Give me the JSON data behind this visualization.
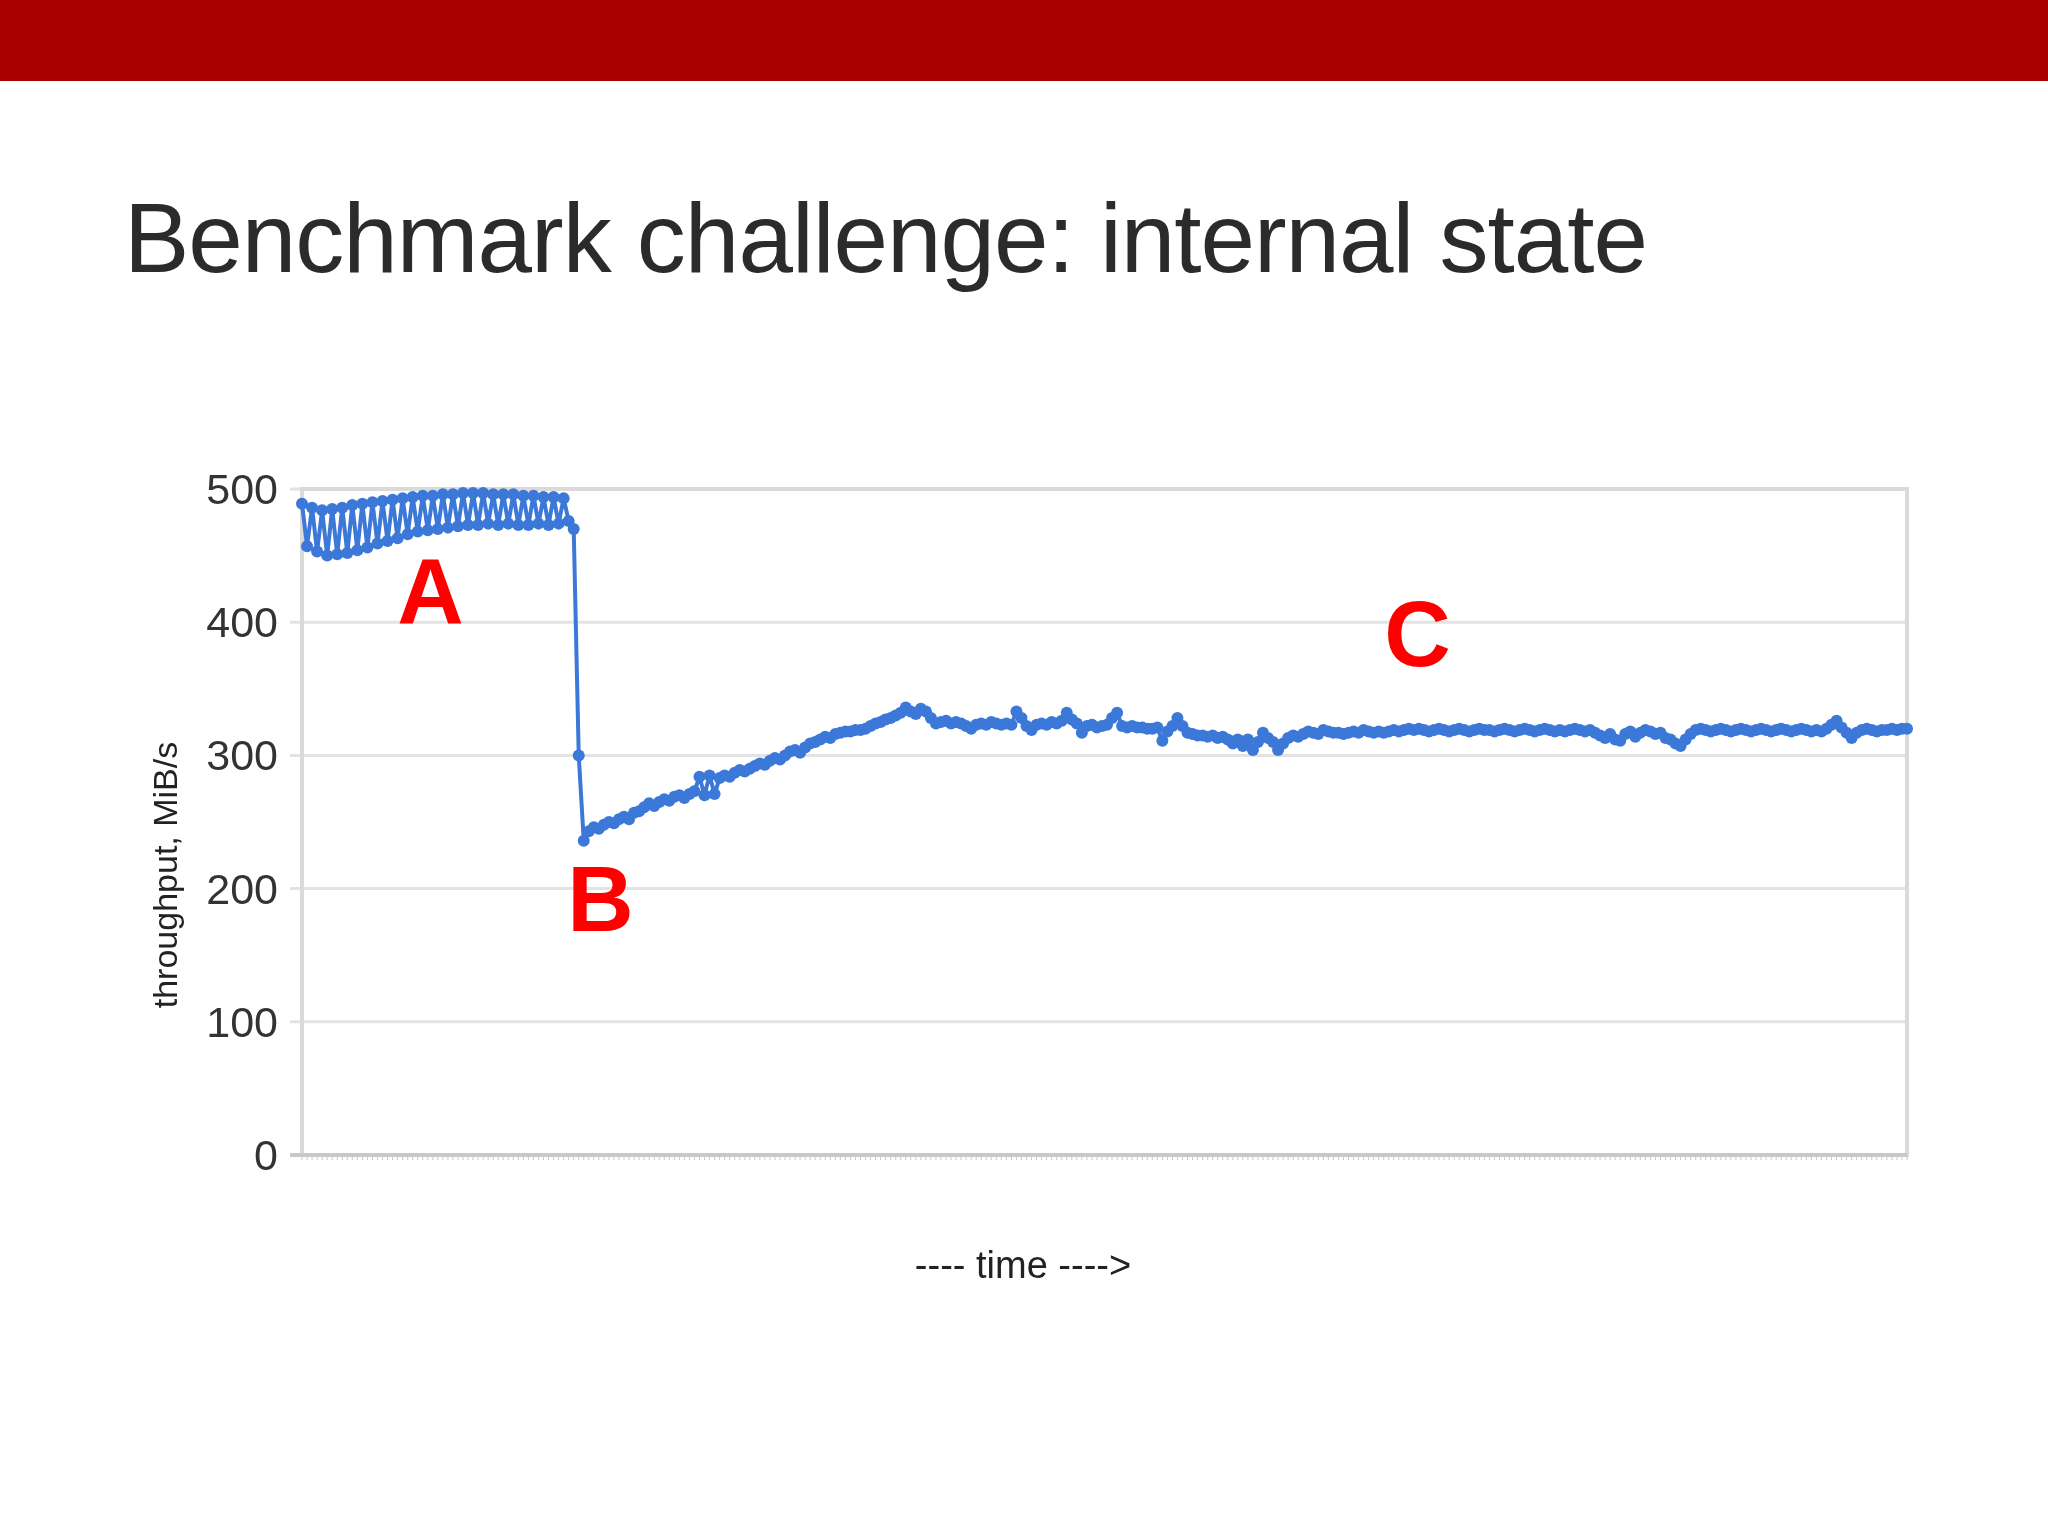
{
  "chart_data": {
    "type": "line",
    "title": "Benchmark challenge: internal state",
    "xlabel": "---- time ---->",
    "ylabel": "throughput, MiB/s",
    "categories": [
      null,
      null,
      null,
      null,
      null,
      null,
      null,
      null,
      null,
      null,
      null,
      null,
      null,
      null,
      null,
      null,
      null,
      null,
      null,
      null,
      null,
      null,
      null,
      null,
      null,
      null,
      null,
      null,
      null,
      null,
      null,
      null,
      null,
      null,
      null,
      null,
      null,
      null,
      null,
      null,
      null,
      null,
      null,
      null,
      null,
      null,
      null,
      null,
      null,
      null,
      null,
      null,
      null,
      null,
      null,
      null,
      null,
      null,
      null,
      null,
      null,
      null,
      null,
      null,
      null,
      null,
      null,
      null,
      null,
      null,
      null,
      null,
      null,
      null,
      null,
      null,
      null,
      null,
      null,
      null,
      null,
      null,
      null,
      null,
      null,
      null,
      null,
      null,
      null,
      null,
      null,
      null,
      null,
      null,
      null,
      null,
      null,
      null,
      null,
      null,
      null,
      null,
      null,
      null,
      null,
      null,
      null,
      null,
      null,
      null,
      null,
      null,
      null,
      null,
      null,
      null,
      null,
      null,
      null,
      null,
      null,
      null,
      null,
      null,
      null,
      null,
      null,
      null,
      null,
      null,
      null,
      null,
      null,
      null,
      null,
      null,
      null,
      null,
      null,
      null,
      null,
      null,
      null,
      null,
      null,
      null,
      null,
      null,
      null,
      null,
      null,
      null,
      null,
      null,
      null,
      null,
      null,
      null,
      null,
      null,
      null,
      null,
      null,
      null,
      null,
      null,
      null,
      null,
      null,
      null,
      null,
      null,
      null,
      null,
      null,
      null,
      null,
      null,
      null,
      null,
      null,
      null,
      null,
      null,
      null,
      null,
      null,
      null,
      null,
      null,
      null,
      null,
      null,
      null,
      null,
      null,
      null,
      null,
      null,
      null,
      null,
      null,
      null,
      null,
      null,
      null,
      null,
      null,
      null,
      null,
      null,
      null,
      null,
      null,
      null,
      null,
      null,
      null,
      null,
      null,
      null,
      null,
      null,
      null,
      null,
      null,
      null,
      null,
      null,
      null,
      null,
      null,
      null,
      null,
      null,
      null,
      null,
      null,
      null,
      null,
      null,
      null,
      null,
      null,
      null,
      null,
      null,
      null,
      null,
      null,
      null,
      null,
      null,
      null,
      null,
      null,
      null,
      null,
      null,
      null,
      null,
      null,
      null,
      null,
      null,
      null,
      null,
      null,
      null,
      null,
      null,
      null,
      null,
      null,
      null,
      null,
      null,
      null,
      null,
      null,
      null,
      null,
      null,
      null,
      null,
      null,
      null,
      null,
      null,
      null,
      null,
      null,
      null,
      null,
      null,
      null,
      null,
      null,
      null,
      null,
      null,
      null,
      null,
      null,
      null,
      null,
      null,
      null,
      null,
      null,
      null,
      null,
      null,
      null,
      null,
      null,
      null,
      null,
      null,
      null
    ],
    "values": [
      489,
      457,
      486,
      453,
      484,
      450,
      485,
      451,
      486,
      452,
      488,
      454,
      489,
      456,
      490,
      459,
      491,
      461,
      492,
      463,
      493,
      466,
      494,
      468,
      495,
      469,
      495,
      470,
      496,
      471,
      496,
      472,
      497,
      473,
      497,
      473,
      497,
      474,
      496,
      473,
      496,
      474,
      496,
      473,
      495,
      473,
      495,
      474,
      494,
      473,
      494,
      474,
      493,
      476,
      470,
      300,
      236,
      243,
      246,
      245,
      248,
      250,
      249,
      252,
      254,
      252,
      257,
      258,
      261,
      264,
      262,
      265,
      267,
      266,
      269,
      270,
      268,
      271,
      273,
      284,
      270,
      285,
      271,
      283,
      285,
      284,
      287,
      289,
      288,
      290,
      292,
      294,
      293,
      296,
      298,
      297,
      300,
      303,
      304,
      302,
      306,
      309,
      310,
      312,
      314,
      313,
      316,
      317,
      318,
      318,
      319,
      319,
      320,
      322,
      324,
      325,
      327,
      328,
      330,
      332,
      336,
      333,
      331,
      335,
      333,
      328,
      324,
      325,
      326,
      324,
      325,
      324,
      322,
      320,
      323,
      324,
      323,
      325,
      324,
      323,
      324,
      323,
      333,
      328,
      322,
      319,
      323,
      324,
      323,
      325,
      324,
      326,
      332,
      327,
      324,
      317,
      322,
      323,
      321,
      322,
      323,
      328,
      332,
      322,
      321,
      322,
      321,
      321,
      320,
      320,
      321,
      311,
      318,
      322,
      328,
      322,
      317,
      316,
      315,
      315,
      314,
      315,
      313,
      314,
      312,
      309,
      312,
      307,
      312,
      304,
      310,
      317,
      313,
      310,
      304,
      309,
      313,
      315,
      314,
      316,
      318,
      317,
      316,
      319,
      318,
      317,
      317,
      316,
      317,
      318,
      317,
      319,
      318,
      317,
      318,
      317,
      318,
      319,
      318,
      319,
      320,
      319,
      320,
      319,
      318,
      319,
      320,
      319,
      318,
      319,
      320,
      319,
      318,
      319,
      320,
      319,
      319,
      318,
      319,
      320,
      319,
      318,
      319,
      320,
      319,
      318,
      319,
      320,
      319,
      318,
      319,
      318,
      319,
      320,
      319,
      318,
      319,
      317,
      315,
      313,
      316,
      312,
      311,
      316,
      318,
      314,
      317,
      319,
      318,
      316,
      317,
      313,
      312,
      309,
      307,
      312,
      316,
      319,
      320,
      319,
      318,
      319,
      320,
      319,
      318,
      319,
      320,
      319,
      318,
      319,
      320,
      319,
      318,
      319,
      320,
      319,
      318,
      319,
      320,
      319,
      318,
      319,
      318,
      320,
      323,
      326,
      321,
      317,
      313,
      317,
      319,
      320,
      319,
      318,
      319,
      319,
      320,
      319,
      320,
      320
    ],
    "color": "#3b78d8",
    "marker": "circle",
    "ylim": [
      0,
      500
    ],
    "yticks": [
      0,
      100,
      200,
      300,
      400,
      500
    ],
    "grid": "y",
    "tick_labels": "y",
    "annotations": [
      "A",
      "B",
      "C"
    ]
  }
}
